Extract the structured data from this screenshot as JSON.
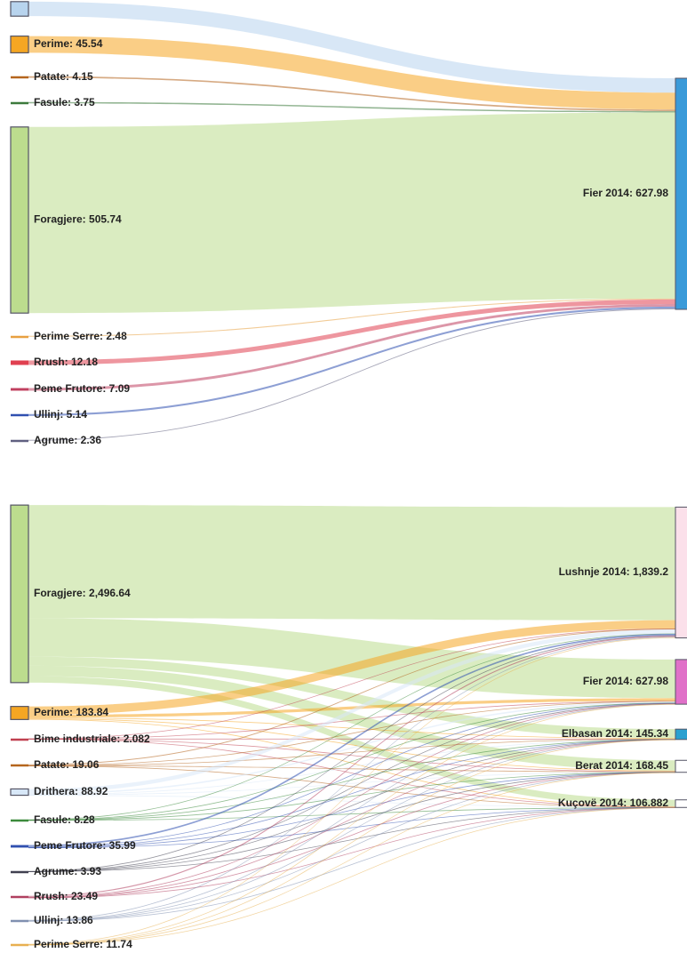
{
  "chart_data": [
    {
      "type": "sankey",
      "sources": [
        {
          "label": null,
          "value": 39.55,
          "color": "#b8d4ee"
        },
        {
          "label": "Perime: 45.54",
          "value": 45.54,
          "color": "#f5a623"
        },
        {
          "label": "Patate: 4.15",
          "value": 4.15,
          "color": "#b5651d"
        },
        {
          "label": "Fasule: 3.75",
          "value": 3.75,
          "color": "#3c7a3c"
        },
        {
          "label": "Foragjere: 505.74",
          "value": 505.74,
          "color": "#bcdc8e"
        },
        {
          "label": "Perime Serre: 2.48",
          "value": 2.48,
          "color": "#e8a040"
        },
        {
          "label": "Rrush: 12.18",
          "value": 12.18,
          "color": "#e04050"
        },
        {
          "label": "Peme Frutore: 7.09",
          "value": 7.09,
          "color": "#c04060"
        },
        {
          "label": "Ullinj: 5.14",
          "value": 5.14,
          "color": "#3050b0"
        },
        {
          "label": "Agrume: 2.36",
          "value": 2.36,
          "color": "#606080"
        }
      ],
      "targets": [
        {
          "label": "Fier 2014: 627.98",
          "value": 627.98,
          "color": "#3a9ad9"
        }
      ]
    },
    {
      "type": "sankey",
      "sources": [
        {
          "label": "Foragjere: 2,496.64",
          "value": 2496.64,
          "color": "#bcdc8e"
        },
        {
          "label": "Perime: 183.84",
          "value": 183.84,
          "color": "#f5a623"
        },
        {
          "label": "Bime industriale: 2.082",
          "value": 2.082,
          "color": "#c04050"
        },
        {
          "label": "Patate: 19.06",
          "value": 19.06,
          "color": "#b5651d"
        },
        {
          "label": "Drithera: 88.92",
          "value": 88.92,
          "color": "#d8e8f8"
        },
        {
          "label": "Fasule: 8.28",
          "value": 8.28,
          "color": "#3c8a3c"
        },
        {
          "label": "Peme Frutore: 35.99",
          "value": 35.99,
          "color": "#3050b0"
        },
        {
          "label": "Agrume: 3.93",
          "value": 3.93,
          "color": "#404050"
        },
        {
          "label": "Rrush: 23.49",
          "value": 23.49,
          "color": "#b04060"
        },
        {
          "label": "Ullinj: 13.86",
          "value": 13.86,
          "color": "#8090b0"
        },
        {
          "label": "Perime Serre: 11.74",
          "value": 11.74,
          "color": "#e8b050"
        }
      ],
      "targets": [
        {
          "label": "Lushnje 2014: 1,839.2",
          "value": 1839.2,
          "color": "#fbe0ea"
        },
        {
          "label": "Fier 2014: 627.98",
          "value": 627.98,
          "color": "#e070c8"
        },
        {
          "label": "Elbasan 2014: 145.34",
          "value": 145.34,
          "color": "#2aa0d0"
        },
        {
          "label": "Berat 2014: 168.45",
          "value": 168.45,
          "color": "#ffffff"
        },
        {
          "label": "Kuçovë 2014: 106.882",
          "value": 106.882,
          "color": "#ffffff"
        }
      ]
    }
  ]
}
